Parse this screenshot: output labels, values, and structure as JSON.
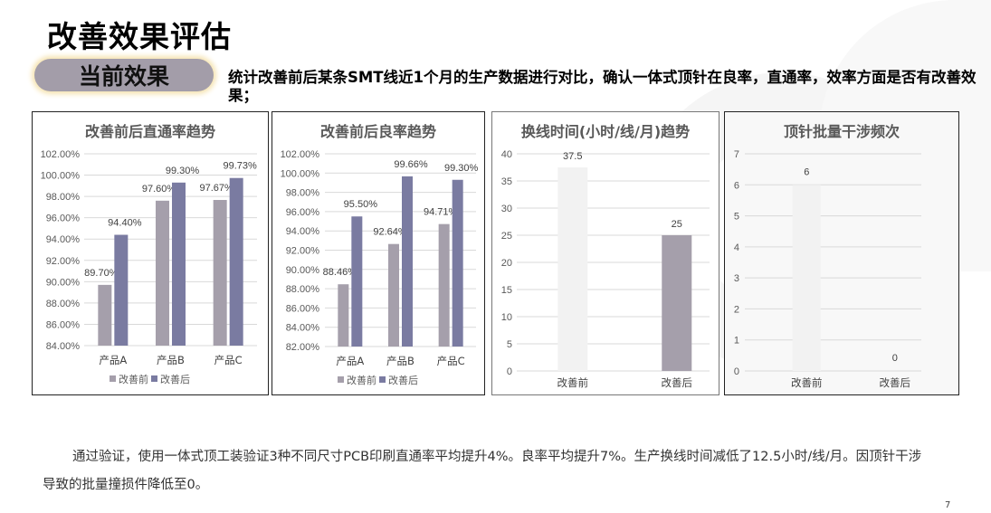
{
  "slide": {
    "title": "改善效果评估",
    "section_label": "当前效果",
    "description": "统计改善前后某条SMT线近1个月的生产数据进行对比，确认一体式顶针在良率，直通率，效率方面是否有改善效果；",
    "summary": "通过验证，使用一体式顶工装验证3种不同尺寸PCB印刷直通率平均提升4%。良率平均提升7%。生产换线时间减低了12.5小时/线/月。因顶针干涉导致的批量撞损件降低至0。",
    "page_number": "7"
  },
  "colors": {
    "before": "#a59fab",
    "after": "#7a7ba1",
    "light_bar": "#f2f2f2",
    "grid": "#d9d9d9"
  },
  "chart_data": [
    {
      "type": "bar",
      "title": "改善前后直通率趋势",
      "categories": [
        "产品A",
        "产品B",
        "产品C"
      ],
      "series": [
        {
          "name": "改善前",
          "values": [
            89.7,
            97.6,
            97.67
          ],
          "labels": [
            "89.70%",
            "97.60%",
            "97.67%"
          ]
        },
        {
          "name": "改善后",
          "values": [
            94.4,
            99.3,
            99.73
          ],
          "labels": [
            "94.40%",
            "99.30%",
            "99.73%"
          ]
        }
      ],
      "ylim": [
        84,
        102
      ],
      "yticks": [
        "84.00%",
        "86.00%",
        "88.00%",
        "90.00%",
        "92.00%",
        "94.00%",
        "96.00%",
        "98.00%",
        "100.00%",
        "102.00%"
      ],
      "grid": true,
      "legend": "bottom"
    },
    {
      "type": "bar",
      "title": "改善前后良率趋势",
      "categories": [
        "产品A",
        "产品B",
        "产品C"
      ],
      "series": [
        {
          "name": "改善前",
          "values": [
            88.46,
            92.64,
            94.71
          ],
          "labels": [
            "88.46%",
            "92.64%",
            "94.71%"
          ]
        },
        {
          "name": "改善后",
          "values": [
            95.5,
            99.66,
            99.3
          ],
          "labels": [
            "95.50%",
            "99.66%",
            "99.30%"
          ]
        }
      ],
      "ylim": [
        82,
        102
      ],
      "yticks": [
        "82.00%",
        "84.00%",
        "86.00%",
        "88.00%",
        "90.00%",
        "92.00%",
        "94.00%",
        "96.00%",
        "98.00%",
        "100.00%",
        "102.00%"
      ],
      "grid": true,
      "legend": "bottom"
    },
    {
      "type": "bar",
      "title": "换线时间(小时/线/月)趋势",
      "categories": [
        "改善前",
        "改善后"
      ],
      "values": [
        37.5,
        25
      ],
      "labels": [
        "37.5",
        "25"
      ],
      "ylim": [
        0,
        40
      ],
      "yticks": [
        "0",
        "5",
        "10",
        "15",
        "20",
        "25",
        "30",
        "35",
        "40"
      ],
      "grid": true
    },
    {
      "type": "bar",
      "title": "顶针批量干涉频次",
      "categories": [
        "改善前",
        "改善后"
      ],
      "values": [
        6,
        0
      ],
      "labels": [
        "6",
        "0"
      ],
      "ylim": [
        0,
        7
      ],
      "yticks": [
        "0",
        "1",
        "2",
        "3",
        "4",
        "5",
        "6",
        "7"
      ],
      "grid": true
    }
  ]
}
